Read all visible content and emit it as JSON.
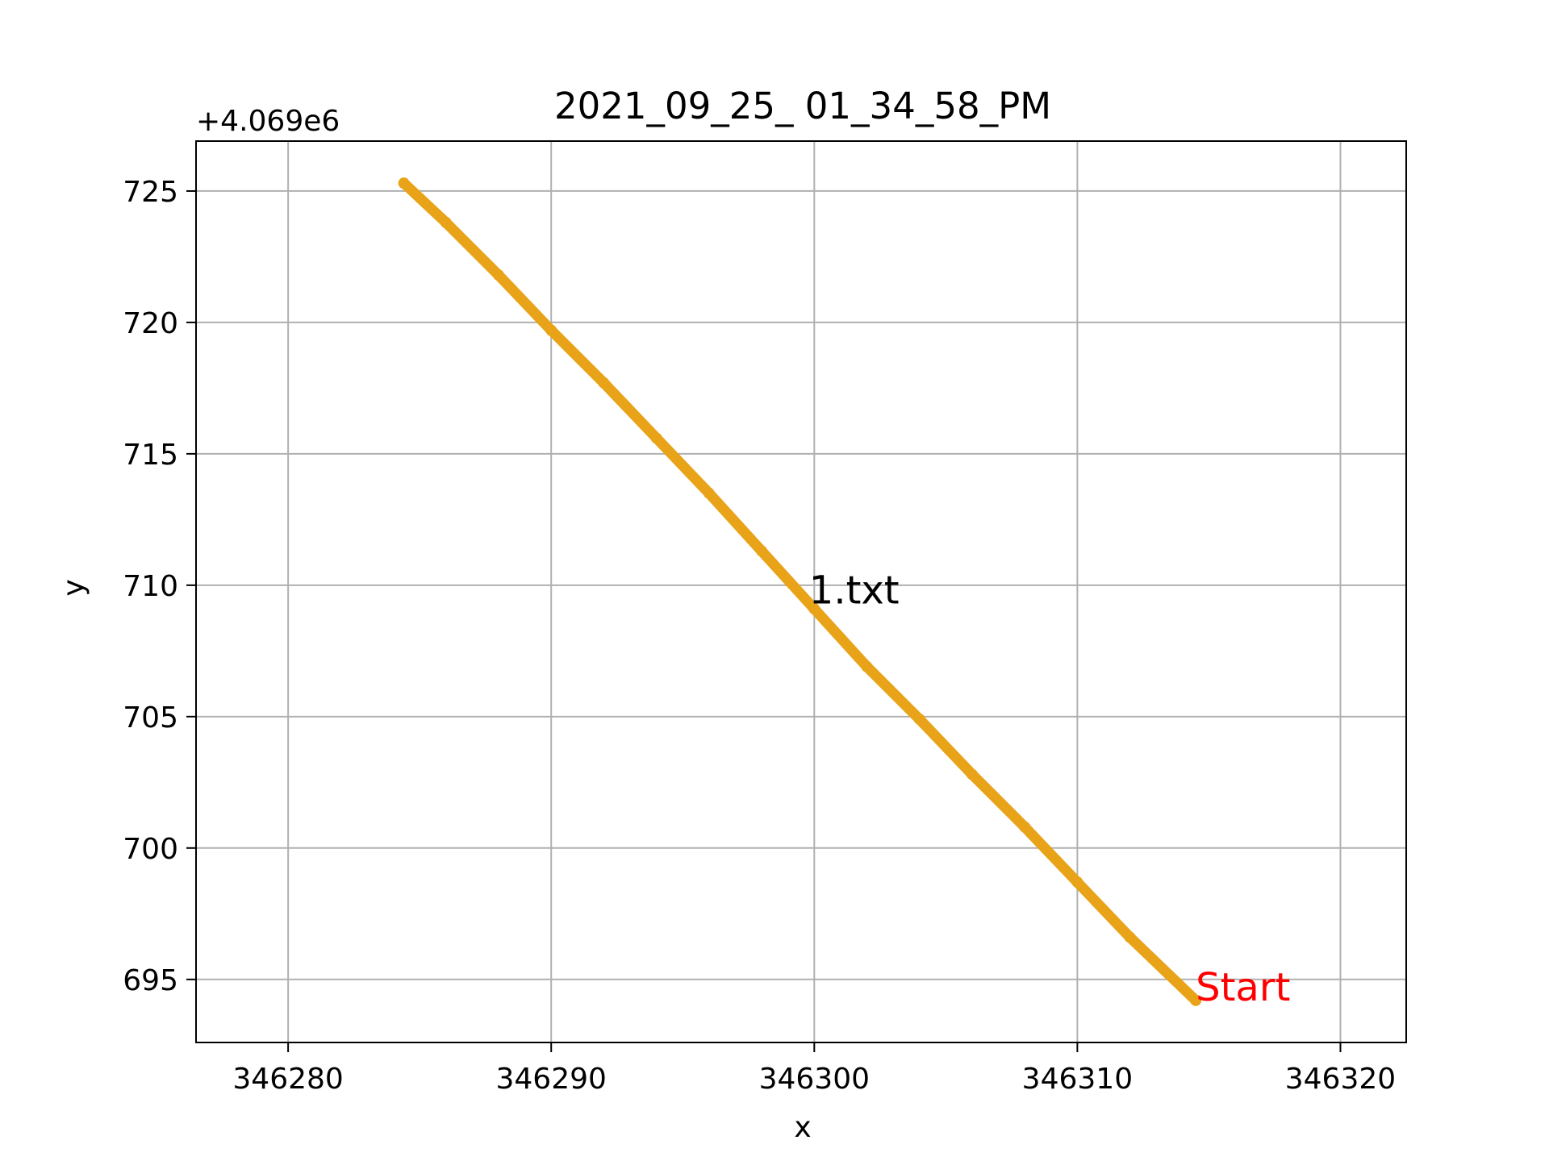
{
  "chart_data": {
    "type": "line",
    "title": "2021_09_25_ 01_34_58_PM",
    "xlabel": "x",
    "ylabel": "y",
    "y_offset_label": "+4.069e6",
    "xlim": [
      346276.5,
      346322.5
    ],
    "ylim": [
      692.6,
      726.9
    ],
    "x_ticks": [
      346280,
      346290,
      346300,
      346310,
      346320
    ],
    "x_tick_labels": [
      "346280",
      "346290",
      "346300",
      "346310",
      "346320"
    ],
    "y_ticks": [
      695,
      700,
      705,
      710,
      715,
      720,
      725
    ],
    "y_tick_labels": [
      "695",
      "700",
      "705",
      "710",
      "715",
      "720",
      "725"
    ],
    "grid": true,
    "series": [
      {
        "color": "#e8a318",
        "x": [
          346314.5,
          346312.0,
          346310.0,
          346308.0,
          346306.0,
          346304.0,
          346302.0,
          346300.0,
          346298.0,
          346296.0,
          346294.0,
          346292.0,
          346290.0,
          346288.0,
          346286.0,
          346284.4
        ],
        "y": [
          694.2,
          696.6,
          698.7,
          700.8,
          702.8,
          704.9,
          706.9,
          709.1,
          711.3,
          713.5,
          715.6,
          717.7,
          719.7,
          721.8,
          723.8,
          725.3
        ]
      }
    ],
    "annotations": [
      {
        "text": "1.txt",
        "x": 346299.8,
        "y": 709.3,
        "color": "#000000"
      },
      {
        "text": "Start",
        "x": 346314.5,
        "y": 694.2,
        "color": "#ff0000"
      }
    ]
  }
}
